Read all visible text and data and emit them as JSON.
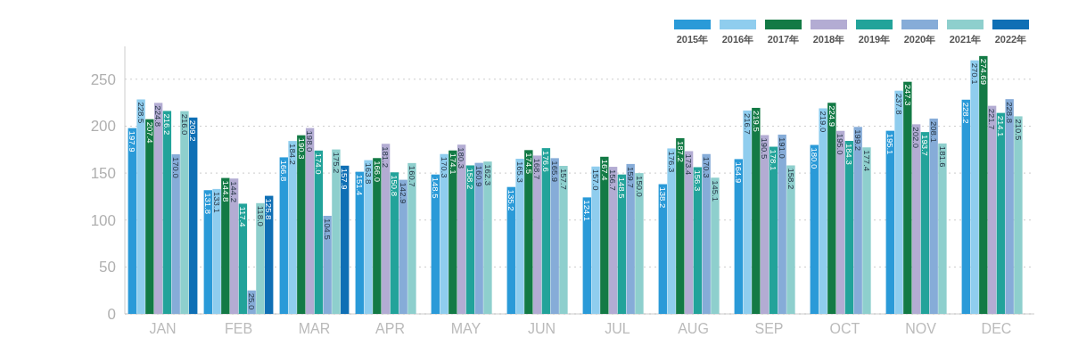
{
  "chart_data": {
    "type": "bar",
    "categories": [
      "JAN",
      "FEB",
      "MAR",
      "APR",
      "MAY",
      "JUN",
      "JUL",
      "AUG",
      "SEP",
      "OCT",
      "NOV",
      "DEC"
    ],
    "series": [
      {
        "name": "2015年",
        "color": "#2a9ad8",
        "values": [
          197.9,
          131.8,
          166.8,
          151.4,
          148.5,
          135.2,
          124.1,
          138.2,
          164.9,
          180.0,
          195.1,
          228.2
        ],
        "value_labels": [
          "197.9",
          "131.8",
          "166.8",
          "151.4",
          "148.5",
          "135.2",
          "124.1",
          "138.2",
          "164.9",
          "180.0",
          "195.1",
          "228.2"
        ]
      },
      {
        "name": "2016年",
        "color": "#8fcdee",
        "values": [
          228.5,
          133.1,
          184.2,
          163.8,
          170.3,
          165.3,
          157.0,
          176.3,
          216.7,
          219.0,
          237.8,
          270.1
        ],
        "value_labels": [
          "228.5",
          "133.1",
          "184.2",
          "163.8",
          "170.3",
          "165.3",
          "157.0",
          "176.3",
          "216.7",
          "219.0",
          "237.8",
          "270.1"
        ]
      },
      {
        "name": "2017年",
        "color": "#137a45",
        "values": [
          207.4,
          144.8,
          190.3,
          166.0,
          174.1,
          174.5,
          167.4,
          187.2,
          219.5,
          224.9,
          247.3,
          274.69
        ],
        "value_labels": [
          "207.4",
          "144.8",
          "190.3",
          "166.0",
          "174.1",
          "174.5",
          "167.4",
          "187.2",
          "219.5",
          "224.9",
          "247.3",
          "274.69"
        ]
      },
      {
        "name": "2018年",
        "color": "#b3acd3",
        "values": [
          224.8,
          144.2,
          198.0,
          181.2,
          180.3,
          168.7,
          156.7,
          173.4,
          190.5,
          195.0,
          202.0,
          221.7
        ],
        "value_labels": [
          "224.8",
          "144.2",
          "198.0",
          "181.2",
          "180.3",
          "168.7",
          "156.7",
          "173.4",
          "190.5",
          "195.0",
          "202.0",
          "221.7"
        ]
      },
      {
        "name": "2019年",
        "color": "#22a39a",
        "values": [
          216.2,
          117.4,
          174.0,
          150.8,
          158.2,
          176.6,
          148.5,
          156.3,
          178.1,
          184.3,
          193.7,
          214.1
        ],
        "value_labels": [
          "216.2",
          "117.4",
          "174.0",
          "150.8",
          "158.2",
          "176.6",
          "148.5",
          "156.3",
          "178.1",
          "184.3",
          "193.7",
          "214.1"
        ]
      },
      {
        "name": "2020年",
        "color": "#86acd8",
        "values": [
          170.0,
          25.0,
          104.5,
          142.9,
          160.9,
          165.9,
          159.7,
          170.3,
          191.0,
          199.2,
          208.1,
          228.8
        ],
        "value_labels": [
          "170.0",
          "25.0",
          "104.5",
          "142.9",
          "160.9",
          "165.9",
          "159.7",
          "170.3",
          "191.0",
          "199.2",
          "208.1",
          "228.8"
        ]
      },
      {
        "name": "2021年",
        "color": "#8ecfcd",
        "values": [
          216.0,
          118.0,
          175.2,
          160.7,
          162.3,
          157.7,
          150.0,
          145.1,
          158.2,
          177.4,
          181.6,
          210.5
        ],
        "value_labels": [
          "216.0",
          "118.0",
          "175.2",
          "160.7",
          "162.3",
          "157.7",
          "150.0",
          "145.1",
          "158.2",
          "177.4",
          "181.6",
          "210.5"
        ]
      },
      {
        "name": "2022年",
        "color": "#0f6fb5",
        "values": [
          209.2,
          125.8,
          157.9,
          null,
          null,
          null,
          null,
          null,
          null,
          null,
          null,
          null
        ],
        "value_labels": [
          "209.2",
          "125.8",
          "157.9",
          null,
          null,
          null,
          null,
          null,
          null,
          null,
          null,
          null
        ]
      }
    ],
    "ylim": [
      0,
      285
    ],
    "yticks": [
      0,
      50,
      100,
      150,
      200,
      250
    ],
    "grid": "y",
    "legend": "top right"
  }
}
